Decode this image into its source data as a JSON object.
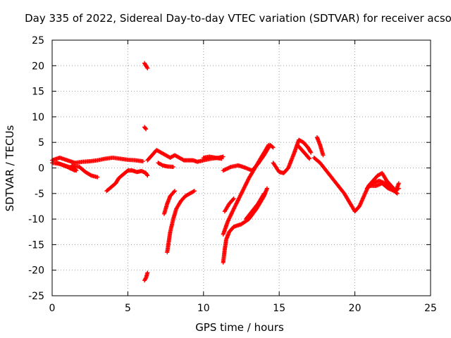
{
  "chart_data": {
    "type": "scatter",
    "title": "Day 335 of 2022, Sidereal Day-to-day VTEC variation (SDTVAR) for receiver acso",
    "xlabel": "GPS time / hours",
    "ylabel": "SDTVAR / TECUs",
    "xlim": [
      0,
      25
    ],
    "ylim": [
      -25,
      25
    ],
    "xticks": [
      0,
      5,
      10,
      15,
      20,
      25
    ],
    "yticks": [
      25,
      20,
      15,
      10,
      5,
      0,
      -5,
      -10,
      -15,
      -20,
      -25
    ],
    "grid": true,
    "marker": "+",
    "series": [
      {
        "name": "SDTVAR",
        "color": "#ff0000",
        "segments": [
          [
            [
              0.0,
              1.5
            ],
            [
              0.5,
              2.0
            ],
            [
              1.0,
              1.5
            ],
            [
              1.5,
              1.0
            ],
            [
              2.0,
              1.2
            ],
            [
              2.5,
              1.3
            ],
            [
              3.0,
              1.5
            ],
            [
              3.5,
              1.8
            ],
            [
              4.0,
              2.0
            ],
            [
              4.5,
              1.8
            ],
            [
              5.0,
              1.6
            ],
            [
              5.5,
              1.5
            ],
            [
              6.0,
              1.3
            ]
          ],
          [
            [
              0.3,
              1.0
            ],
            [
              0.8,
              0.5
            ],
            [
              1.3,
              0.0
            ],
            [
              1.6,
              -0.5
            ],
            [
              1.3,
              0.5
            ],
            [
              1.8,
              0.2
            ],
            [
              2.2,
              -0.8
            ],
            [
              2.6,
              -1.5
            ],
            [
              3.0,
              -1.8
            ]
          ],
          [
            [
              0.0,
              1.0
            ],
            [
              0.5,
              0.8
            ],
            [
              1.0,
              0.2
            ],
            [
              1.5,
              -0.5
            ]
          ],
          [
            [
              3.6,
              -4.5
            ],
            [
              3.8,
              -4.0
            ],
            [
              4.0,
              -3.5
            ],
            [
              4.2,
              -3.0
            ],
            [
              4.4,
              -2.0
            ],
            [
              4.6,
              -1.5
            ],
            [
              4.8,
              -1.0
            ],
            [
              5.0,
              -0.5
            ],
            [
              5.3,
              -0.5
            ],
            [
              5.6,
              -0.8
            ],
            [
              5.9,
              -0.6
            ],
            [
              6.2,
              -1.0
            ],
            [
              6.3,
              -1.5
            ]
          ],
          [
            [
              6.1,
              20.5
            ],
            [
              6.2,
              20.0
            ],
            [
              6.3,
              19.5
            ]
          ],
          [
            [
              6.1,
              8.0
            ],
            [
              6.2,
              7.6
            ]
          ],
          [
            [
              6.1,
              -22.0
            ],
            [
              6.2,
              -21.5
            ],
            [
              6.3,
              -20.5
            ]
          ],
          [
            [
              6.3,
              1.5
            ],
            [
              6.6,
              2.5
            ],
            [
              6.9,
              3.5
            ],
            [
              7.2,
              3.0
            ],
            [
              7.5,
              2.5
            ],
            [
              7.8,
              2.0
            ],
            [
              8.1,
              2.5
            ],
            [
              8.4,
              2.0
            ],
            [
              8.7,
              1.5
            ],
            [
              9.0,
              1.5
            ],
            [
              9.3,
              1.5
            ],
            [
              9.6,
              1.2
            ],
            [
              10.0,
              1.5
            ],
            [
              10.5,
              1.8
            ],
            [
              11.0,
              2.0
            ],
            [
              11.3,
              2.2
            ]
          ],
          [
            [
              7.0,
              1.0
            ],
            [
              7.3,
              0.5
            ],
            [
              7.6,
              0.3
            ],
            [
              8.0,
              0.2
            ]
          ],
          [
            [
              10.0,
              2.0
            ],
            [
              10.4,
              2.2
            ],
            [
              10.8,
              2.0
            ],
            [
              11.2,
              1.8
            ]
          ],
          [
            [
              7.6,
              -16.5
            ],
            [
              7.7,
              -14.5
            ],
            [
              7.8,
              -12.5
            ],
            [
              8.0,
              -10.0
            ],
            [
              8.2,
              -8.0
            ],
            [
              8.5,
              -6.5
            ],
            [
              8.8,
              -5.5
            ],
            [
              9.1,
              -5.0
            ],
            [
              9.4,
              -4.5
            ]
          ],
          [
            [
              7.4,
              -9.0
            ],
            [
              7.6,
              -7.0
            ],
            [
              7.8,
              -5.5
            ],
            [
              8.1,
              -4.5
            ]
          ],
          [
            [
              11.3,
              -18.5
            ],
            [
              11.4,
              -16.0
            ],
            [
              11.5,
              -14.0
            ],
            [
              11.7,
              -12.5
            ],
            [
              12.0,
              -11.5
            ],
            [
              12.5,
              -11.0
            ],
            [
              13.0,
              -10.0
            ],
            [
              13.5,
              -8.0
            ],
            [
              14.0,
              -5.5
            ],
            [
              14.2,
              -4.0
            ]
          ],
          [
            [
              11.3,
              -13.0
            ],
            [
              11.6,
              -10.5
            ],
            [
              12.0,
              -8.0
            ],
            [
              12.5,
              -5.0
            ],
            [
              13.0,
              -2.0
            ],
            [
              13.5,
              0.5
            ],
            [
              14.0,
              3.0
            ],
            [
              14.3,
              4.5
            ]
          ],
          [
            [
              11.4,
              -8.5
            ],
            [
              11.7,
              -7.0
            ],
            [
              12.0,
              -6.0
            ]
          ],
          [
            [
              12.8,
              -10.0
            ],
            [
              13.2,
              -8.5
            ],
            [
              13.6,
              -7.0
            ],
            [
              14.0,
              -5.0
            ]
          ],
          [
            [
              11.3,
              -0.5
            ],
            [
              11.8,
              0.2
            ],
            [
              12.3,
              0.5
            ],
            [
              12.8,
              0.0
            ],
            [
              13.2,
              -0.5
            ],
            [
              13.6,
              0.8
            ],
            [
              14.0,
              2.5
            ],
            [
              14.4,
              4.5
            ],
            [
              14.6,
              4.0
            ]
          ],
          [
            [
              14.6,
              1.0
            ],
            [
              15.0,
              -0.8
            ],
            [
              15.3,
              -1.0
            ],
            [
              15.6,
              0.0
            ],
            [
              16.0,
              3.0
            ],
            [
              16.3,
              5.5
            ],
            [
              16.6,
              5.0
            ],
            [
              16.9,
              4.0
            ],
            [
              17.1,
              3.0
            ]
          ],
          [
            [
              16.2,
              4.5
            ],
            [
              16.5,
              3.5
            ],
            [
              16.8,
              2.5
            ],
            [
              17.0,
              1.8
            ]
          ],
          [
            [
              17.5,
              6.0
            ],
            [
              17.7,
              4.5
            ],
            [
              17.9,
              2.5
            ]
          ],
          [
            [
              17.3,
              2.0
            ],
            [
              17.7,
              1.0
            ],
            [
              18.1,
              -0.5
            ],
            [
              18.5,
              -2.0
            ],
            [
              18.9,
              -3.5
            ],
            [
              19.3,
              -5.0
            ],
            [
              19.7,
              -7.0
            ],
            [
              20.0,
              -8.5
            ],
            [
              20.3,
              -7.5
            ],
            [
              20.6,
              -5.5
            ],
            [
              20.9,
              -3.5
            ],
            [
              21.2,
              -2.5
            ],
            [
              21.5,
              -1.5
            ],
            [
              21.8,
              -1.0
            ],
            [
              22.1,
              -2.5
            ],
            [
              22.4,
              -3.5
            ],
            [
              22.7,
              -4.5
            ],
            [
              22.9,
              -3.0
            ]
          ],
          [
            [
              20.8,
              -4.0
            ],
            [
              21.2,
              -3.0
            ],
            [
              21.6,
              -2.5
            ],
            [
              22.0,
              -3.0
            ],
            [
              22.4,
              -4.0
            ],
            [
              22.8,
              -5.0
            ]
          ],
          [
            [
              21.0,
              -3.5
            ],
            [
              21.4,
              -3.5
            ],
            [
              21.8,
              -3.0
            ],
            [
              22.2,
              -4.0
            ],
            [
              22.6,
              -4.5
            ],
            [
              22.9,
              -4.0
            ]
          ]
        ]
      }
    ]
  }
}
